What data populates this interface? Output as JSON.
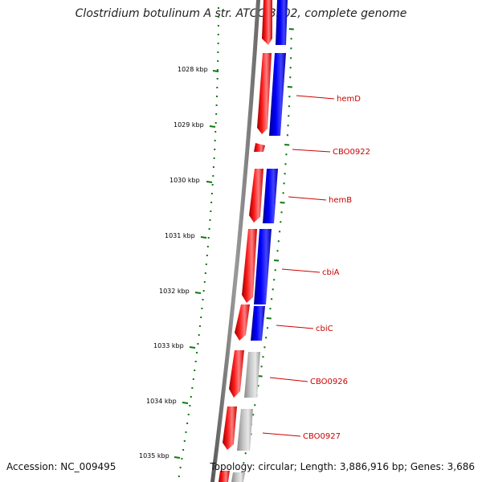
{
  "title": "Clostridium botulinum A str. ATCC 3502, complete genome",
  "footer": {
    "accession": "Accession: NC_009495",
    "topology": "Topology: circular; Length: 3,886,916 bp; Genes: 3,686"
  },
  "scale_labels": [
    "1028 kbp",
    "1029 kbp",
    "1030 kbp",
    "1031 kbp",
    "1032 kbp",
    "1033 kbp",
    "1034 kbp",
    "1035 kbp"
  ],
  "genes": [
    {
      "label": "hemD"
    },
    {
      "label": "CBO0922"
    },
    {
      "label": "hemB"
    },
    {
      "label": "cbiA"
    },
    {
      "label": "cbiC"
    },
    {
      "label": "CBO0926"
    },
    {
      "label": "CBO0927"
    }
  ],
  "colors": {
    "forward_strand": "#ff0000",
    "reverse_strand": "#0000ff",
    "unknown_strand": "#b0b0b0",
    "backbone": "#808080",
    "scale_ticks": "#107a10",
    "gene_label": "#cc0000"
  }
}
